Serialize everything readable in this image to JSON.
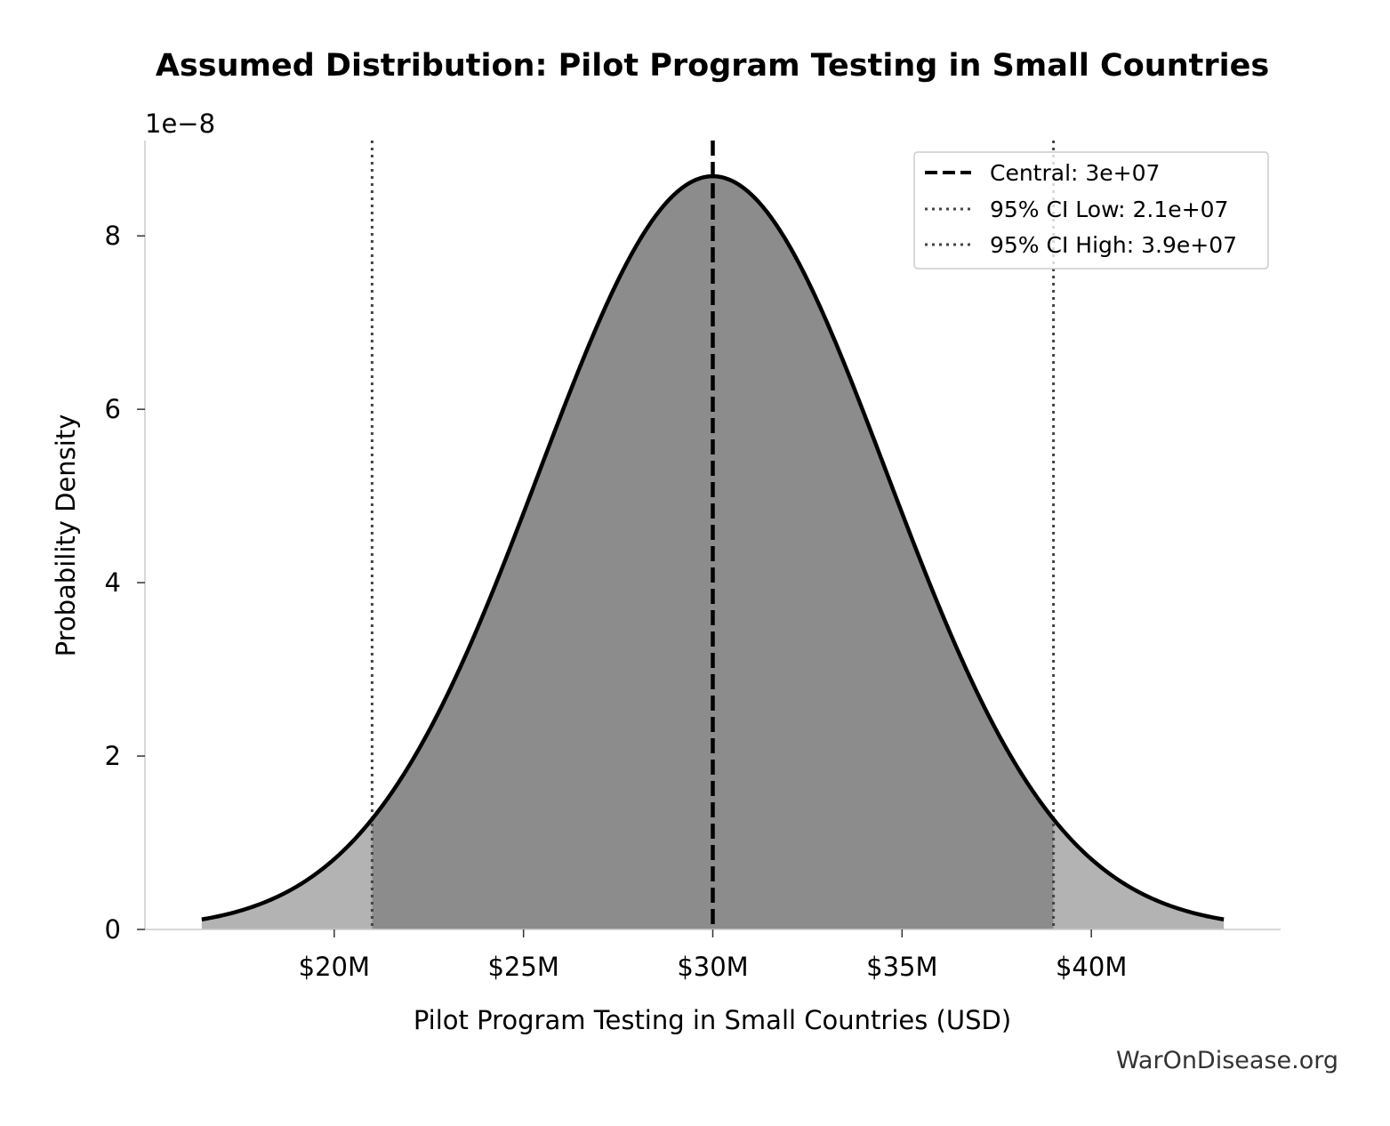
{
  "chart_data": {
    "type": "area",
    "title": "Assumed Distribution: Pilot Program Testing in Small Countries",
    "xlabel": "Pilot Program Testing in Small Countries (USD)",
    "ylabel": "Probability Density",
    "y_scale_label": "1e−8",
    "distribution": "normal",
    "mean": 30000000,
    "std": 4591837,
    "x_range": [
      16500000,
      43500000
    ],
    "xlim": [
      15000000,
      45000000
    ],
    "ylim": [
      0,
      9.1e-08
    ],
    "x_ticks": [
      {
        "value": 20000000,
        "label": "$20M"
      },
      {
        "value": 25000000,
        "label": "$25M"
      },
      {
        "value": 30000000,
        "label": "$30M"
      },
      {
        "value": 35000000,
        "label": "$35M"
      },
      {
        "value": 40000000,
        "label": "$40M"
      }
    ],
    "y_ticks": [
      {
        "value": 0,
        "label": "0"
      },
      {
        "value": 2e-08,
        "label": "2"
      },
      {
        "value": 4e-08,
        "label": "4"
      },
      {
        "value": 6e-08,
        "label": "6"
      },
      {
        "value": 8e-08,
        "label": "8"
      }
    ],
    "central": 30000000,
    "ci_low": 21000000,
    "ci_high": 39000000,
    "legend_position": "top-right",
    "legend": [
      {
        "label": "Central: 3e+07",
        "style": "dashed"
      },
      {
        "label": "95% CI Low: 2.1e+07",
        "style": "dotted"
      },
      {
        "label": "95% CI High: 3.9e+07",
        "style": "dotted"
      }
    ],
    "colors": {
      "ci_fill": "#8c8c8c",
      "tail_fill": "#b3b3b3",
      "curve": "#000000",
      "ci_line": "#444444"
    },
    "grid": false
  },
  "watermark": "WarOnDisease.org"
}
